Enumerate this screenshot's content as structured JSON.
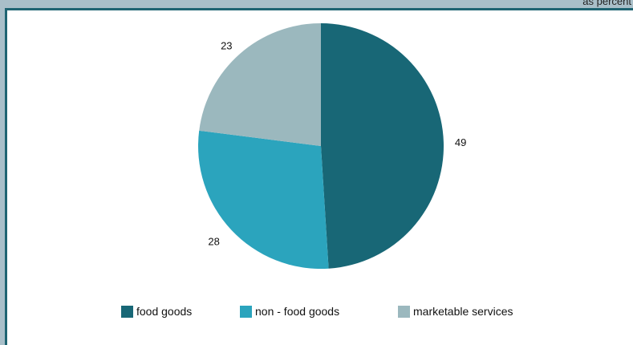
{
  "header": {
    "note": "as percent"
  },
  "chart_data": {
    "type": "pie",
    "title": "",
    "categories": [
      "food goods",
      "non - food goods",
      "marketable services"
    ],
    "values": [
      49,
      28,
      23
    ],
    "data_labels": [
      "49",
      "28",
      "23"
    ],
    "colors": [
      "#186776",
      "#2ba4bd",
      "#9bb8be"
    ],
    "start_angle_deg": 0,
    "direction": "clockwise",
    "legend_position": "bottom"
  },
  "legend": {
    "items": [
      {
        "label": "food goods",
        "color": "#186776"
      },
      {
        "label": "non - food goods",
        "color": "#2ba4bd"
      },
      {
        "label": "marketable services",
        "color": "#9bb8be"
      }
    ]
  }
}
